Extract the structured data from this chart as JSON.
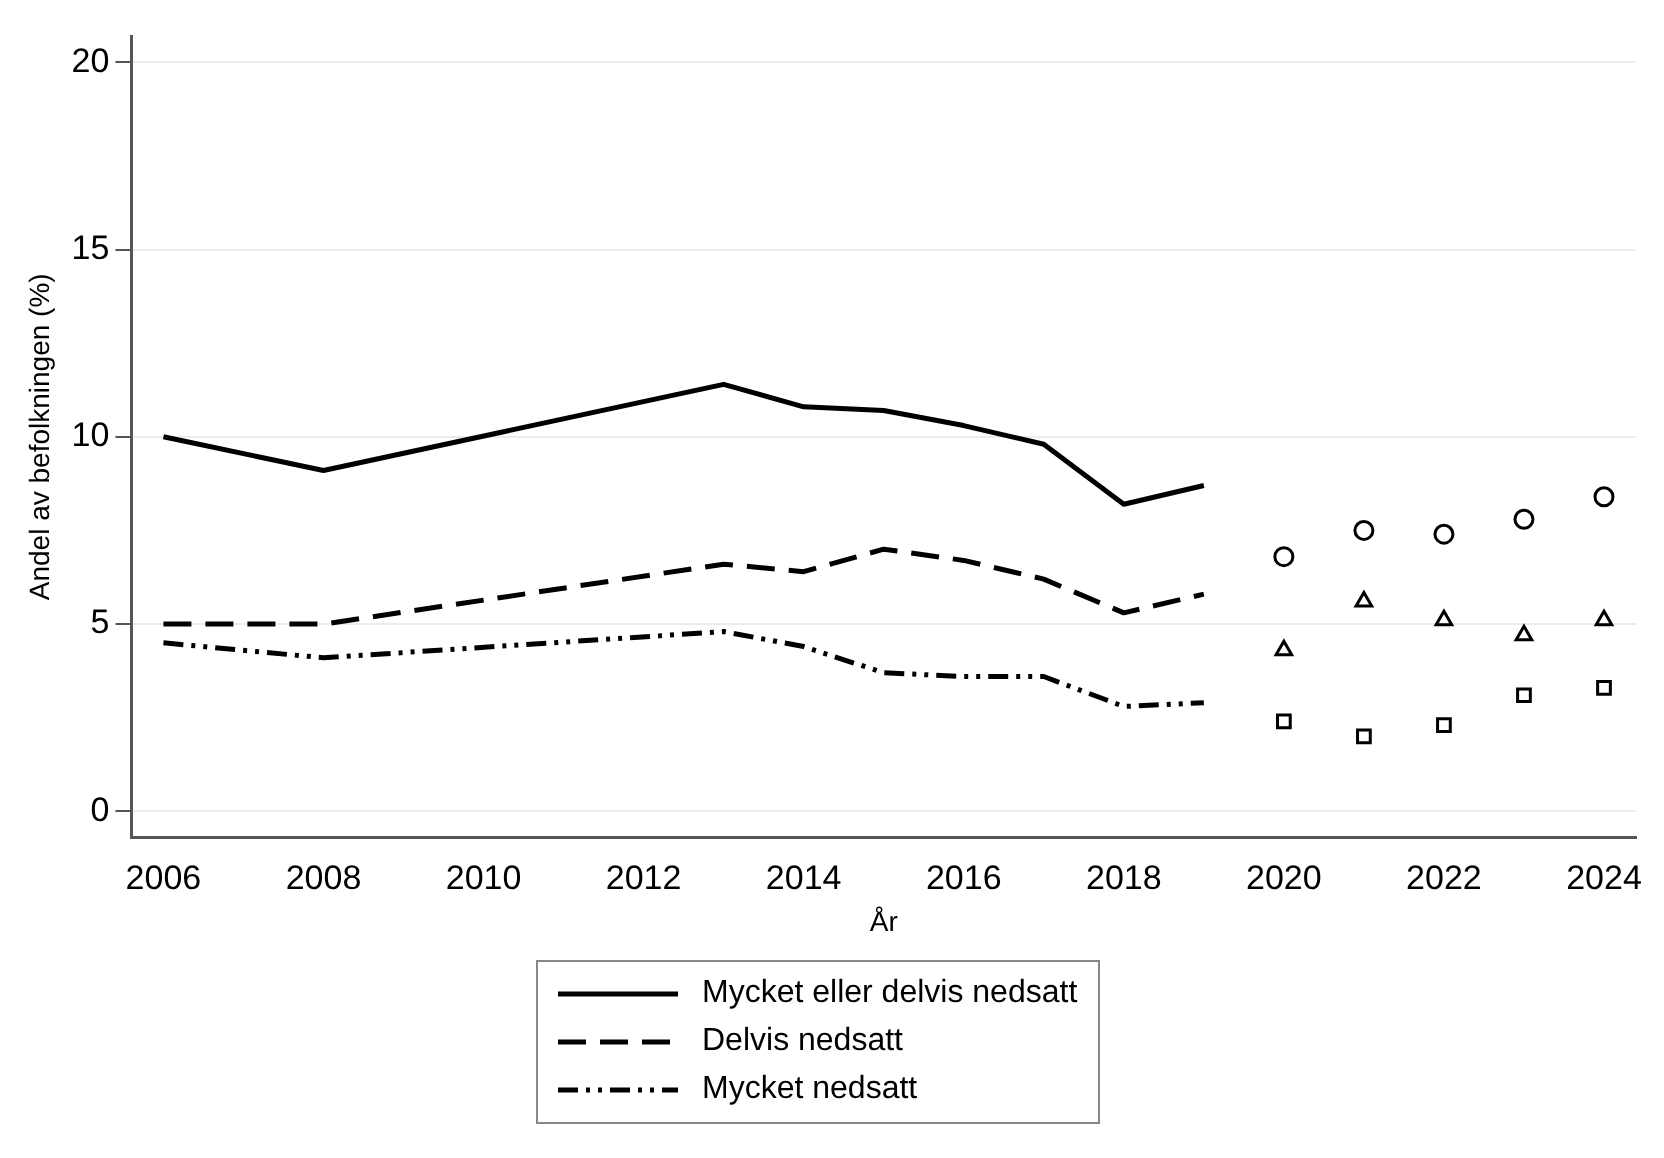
{
  "chart_data": {
    "type": "line",
    "xlabel": "År",
    "ylabel": "Andel av befolkningen (%)",
    "xlim": [
      2005.6,
      2024.4
    ],
    "xticks": [
      2006,
      2008,
      2010,
      2012,
      2014,
      2016,
      2018,
      2020,
      2022,
      2024
    ],
    "ylim": [
      -0.7,
      20.7
    ],
    "yticks": [
      0,
      5,
      10,
      15,
      20
    ],
    "grid": "y",
    "legend": "bottom",
    "series": [
      {
        "name": "Mycket eller delvis nedsatt",
        "color": "#000000",
        "line_style": "solid",
        "x": [
          2006,
          2008,
          2013,
          2014,
          2015,
          2016,
          2017,
          2018,
          2019
        ],
        "values": [
          10.0,
          9.1,
          11.4,
          10.8,
          10.7,
          10.3,
          9.8,
          8.2,
          8.7
        ]
      },
      {
        "name": "Delvis nedsatt",
        "color": "#000000",
        "line_style": "dashed",
        "x": [
          2006,
          2008,
          2013,
          2014,
          2015,
          2016,
          2017,
          2018,
          2019
        ],
        "values": [
          5.0,
          5.0,
          6.6,
          6.4,
          7.0,
          6.7,
          6.2,
          5.3,
          5.8
        ]
      },
      {
        "name": "Mycket nedsatt",
        "color": "#000000",
        "line_style": "dotted",
        "x": [
          2006,
          2008,
          2013,
          2014,
          2015,
          2016,
          2017,
          2018,
          2019
        ],
        "values": [
          4.5,
          4.1,
          4.8,
          4.4,
          3.7,
          3.6,
          3.6,
          2.8,
          2.9
        ]
      },
      {
        "type": "scatter",
        "marker": "circle",
        "color": "#000000",
        "x": [
          2020,
          2021,
          2022,
          2023,
          2024
        ],
        "values": [
          6.8,
          7.5,
          7.4,
          7.8,
          8.4
        ]
      },
      {
        "type": "scatter",
        "marker": "triangle",
        "color": "#000000",
        "x": [
          2020,
          2021,
          2022,
          2023,
          2024
        ],
        "values": [
          4.3,
          5.6,
          5.1,
          4.7,
          5.1
        ]
      },
      {
        "type": "scatter",
        "marker": "square",
        "color": "#000000",
        "x": [
          2020,
          2021,
          2022,
          2023,
          2024
        ],
        "values": [
          2.4,
          2.0,
          2.3,
          3.1,
          3.3
        ]
      }
    ]
  }
}
